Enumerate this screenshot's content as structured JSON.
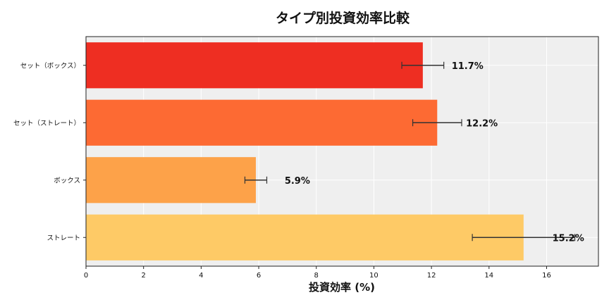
{
  "chart_data": {
    "type": "bar",
    "orientation": "horizontal",
    "title": "タイプ別投資効率比較",
    "xlabel": "投資効率 (%)",
    "ylabel": "",
    "xlim": [
      0,
      17.8
    ],
    "xticks": [
      0,
      2,
      4,
      6,
      8,
      10,
      12,
      14,
      16
    ],
    "grid": true,
    "categories": [
      "セット（ボックス）",
      "セット（ストレート）",
      "ボックス",
      "ストレート"
    ],
    "values": [
      11.7,
      12.2,
      5.9,
      15.2
    ],
    "errors": [
      0.73,
      0.85,
      0.38,
      1.78
    ],
    "data_labels": [
      "11.7%",
      "12.2%",
      "5.9%",
      "15.2%"
    ],
    "colors": [
      "#ee2e22",
      "#fd6a33",
      "#fda249",
      "#feca66"
    ],
    "background": "#efefef"
  }
}
